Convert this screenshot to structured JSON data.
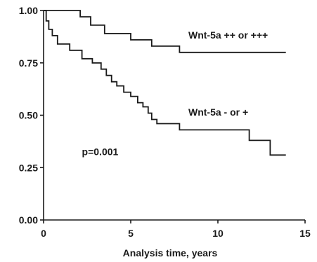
{
  "chart_data": {
    "type": "line",
    "title": "",
    "xlabel": "Analysis time, years",
    "ylabel": "",
    "xlim": [
      0,
      15
    ],
    "ylim": [
      0,
      1
    ],
    "x_ticks": [
      0,
      5,
      10,
      15
    ],
    "x_tick_labels": [
      "0",
      "5",
      "10",
      "15"
    ],
    "y_ticks": [
      0,
      0.25,
      0.5,
      0.75,
      1
    ],
    "y_tick_labels": [
      "0.00",
      "0.25",
      "0.50",
      "0.75",
      "1.00"
    ],
    "grid": false,
    "step": true,
    "series": [
      {
        "name": "Wnt-5a ++ or +++",
        "x": [
          0,
          2.1,
          2.7,
          3.5,
          5.0,
          6.2,
          7.8,
          13.9
        ],
        "y": [
          1.0,
          0.97,
          0.93,
          0.89,
          0.86,
          0.83,
          0.8,
          0.8
        ]
      },
      {
        "name": "Wnt-5a - or +",
        "x": [
          0,
          0.15,
          0.3,
          0.5,
          0.8,
          1.5,
          2.2,
          2.8,
          3.3,
          3.6,
          3.9,
          4.2,
          4.6,
          5.0,
          5.4,
          5.7,
          6.0,
          6.2,
          6.5,
          7.8,
          11.8,
          13.0,
          13.9
        ],
        "y": [
          1.0,
          0.95,
          0.91,
          0.88,
          0.84,
          0.81,
          0.77,
          0.75,
          0.72,
          0.69,
          0.66,
          0.64,
          0.61,
          0.59,
          0.56,
          0.54,
          0.51,
          0.48,
          0.46,
          0.43,
          0.38,
          0.31,
          0.31
        ]
      }
    ],
    "annotations": [
      {
        "text": "p=0.001",
        "x": 2.2,
        "y": 0.31
      }
    ]
  }
}
